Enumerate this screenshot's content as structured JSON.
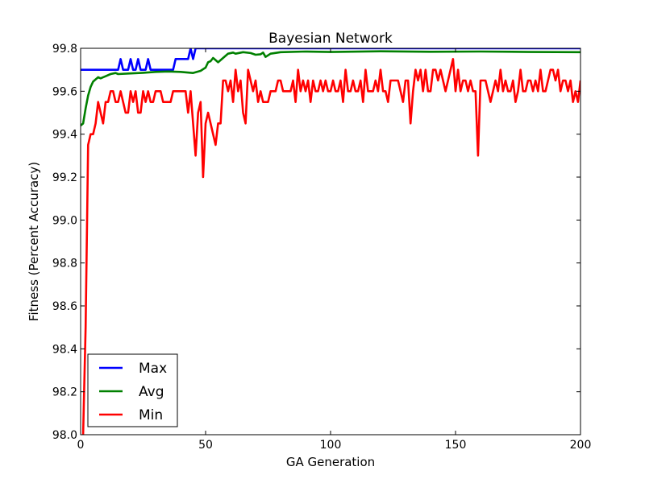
{
  "chart_data": {
    "type": "line",
    "title": "Bayesian Network",
    "xlabel": "GA Generation",
    "ylabel": "Fitness (Percent Accuracy)",
    "xlim": [
      0,
      200
    ],
    "ylim": [
      98.0,
      99.8
    ],
    "xticks": [
      0,
      50,
      100,
      150,
      200
    ],
    "yticks": [
      98.0,
      98.2,
      98.4,
      98.6,
      98.8,
      99.0,
      99.2,
      99.4,
      99.6,
      99.8
    ],
    "grid": false,
    "legend": "bottom-left",
    "series": [
      {
        "name": "Max",
        "color": "#0000ff",
        "points": [
          [
            0,
            99.7
          ],
          [
            15,
            99.7
          ],
          [
            16,
            99.75
          ],
          [
            17,
            99.7
          ],
          [
            19,
            99.7
          ],
          [
            20,
            99.75
          ],
          [
            21,
            99.7
          ],
          [
            22,
            99.7
          ],
          [
            23,
            99.75
          ],
          [
            24,
            99.7
          ],
          [
            26,
            99.7
          ],
          [
            27,
            99.75
          ],
          [
            28,
            99.7
          ],
          [
            37,
            99.7
          ],
          [
            38,
            99.75
          ],
          [
            43,
            99.75
          ],
          [
            44,
            99.8
          ],
          [
            45,
            99.75
          ],
          [
            46,
            99.8
          ],
          [
            200,
            99.8
          ]
        ]
      },
      {
        "name": "Avg",
        "color": "#008000",
        "points": [
          [
            0,
            99.44
          ],
          [
            1,
            99.45
          ],
          [
            2,
            99.52
          ],
          [
            3,
            99.58
          ],
          [
            4,
            99.62
          ],
          [
            5,
            99.645
          ],
          [
            6,
            99.655
          ],
          [
            7,
            99.665
          ],
          [
            8,
            99.66
          ],
          [
            10,
            99.67
          ],
          [
            12,
            99.68
          ],
          [
            14,
            99.685
          ],
          [
            15,
            99.68
          ],
          [
            20,
            99.683
          ],
          [
            25,
            99.686
          ],
          [
            30,
            99.69
          ],
          [
            35,
            99.692
          ],
          [
            40,
            99.69
          ],
          [
            45,
            99.685
          ],
          [
            48,
            99.695
          ],
          [
            50,
            99.71
          ],
          [
            51,
            99.735
          ],
          [
            52,
            99.74
          ],
          [
            53,
            99.755
          ],
          [
            54,
            99.745
          ],
          [
            55,
            99.735
          ],
          [
            57,
            99.755
          ],
          [
            59,
            99.775
          ],
          [
            61,
            99.78
          ],
          [
            62,
            99.775
          ],
          [
            65,
            99.782
          ],
          [
            68,
            99.778
          ],
          [
            70,
            99.77
          ],
          [
            72,
            99.772
          ],
          [
            73,
            99.78
          ],
          [
            74,
            99.76
          ],
          [
            76,
            99.775
          ],
          [
            80,
            99.782
          ],
          [
            90,
            99.785
          ],
          [
            100,
            99.783
          ],
          [
            120,
            99.786
          ],
          [
            140,
            99.784
          ],
          [
            160,
            99.785
          ],
          [
            180,
            99.783
          ],
          [
            200,
            99.782
          ]
        ]
      },
      {
        "name": "Min",
        "color": "#ff0000",
        "points": [
          [
            0,
            97.9
          ],
          [
            1,
            98.0
          ],
          [
            2,
            98.5
          ],
          [
            3,
            99.35
          ],
          [
            4,
            99.4
          ],
          [
            5,
            99.4
          ],
          [
            6,
            99.45
          ],
          [
            7,
            99.55
          ],
          [
            8,
            99.5
          ],
          [
            9,
            99.45
          ],
          [
            10,
            99.55
          ],
          [
            11,
            99.55
          ],
          [
            12,
            99.6
          ],
          [
            13,
            99.6
          ],
          [
            14,
            99.55
          ],
          [
            15,
            99.55
          ],
          [
            16,
            99.6
          ],
          [
            17,
            99.55
          ],
          [
            18,
            99.5
          ],
          [
            19,
            99.5
          ],
          [
            20,
            99.6
          ],
          [
            21,
            99.55
          ],
          [
            22,
            99.6
          ],
          [
            23,
            99.5
          ],
          [
            24,
            99.5
          ],
          [
            25,
            99.6
          ],
          [
            26,
            99.55
          ],
          [
            27,
            99.6
          ],
          [
            28,
            99.55
          ],
          [
            29,
            99.55
          ],
          [
            30,
            99.6
          ],
          [
            31,
            99.6
          ],
          [
            32,
            99.6
          ],
          [
            33,
            99.55
          ],
          [
            34,
            99.55
          ],
          [
            35,
            99.55
          ],
          [
            36,
            99.55
          ],
          [
            37,
            99.6
          ],
          [
            41,
            99.6
          ],
          [
            42,
            99.6
          ],
          [
            43,
            99.5
          ],
          [
            44,
            99.6
          ],
          [
            45,
            99.45
          ],
          [
            46,
            99.3
          ],
          [
            47,
            99.5
          ],
          [
            48,
            99.55
          ],
          [
            49,
            99.2
          ],
          [
            50,
            99.45
          ],
          [
            51,
            99.5
          ],
          [
            52,
            99.45
          ],
          [
            53,
            99.4
          ],
          [
            54,
            99.35
          ],
          [
            55,
            99.45
          ],
          [
            56,
            99.45
          ],
          [
            57,
            99.65
          ],
          [
            58,
            99.65
          ],
          [
            59,
            99.6
          ],
          [
            60,
            99.65
          ],
          [
            61,
            99.55
          ],
          [
            62,
            99.7
          ],
          [
            63,
            99.6
          ],
          [
            64,
            99.65
          ],
          [
            65,
            99.5
          ],
          [
            66,
            99.45
          ],
          [
            67,
            99.7
          ],
          [
            68,
            99.65
          ],
          [
            69,
            99.6
          ],
          [
            70,
            99.65
          ],
          [
            71,
            99.55
          ],
          [
            72,
            99.6
          ],
          [
            73,
            99.55
          ],
          [
            75,
            99.55
          ],
          [
            76,
            99.6
          ],
          [
            78,
            99.6
          ],
          [
            79,
            99.65
          ],
          [
            80,
            99.65
          ],
          [
            81,
            99.6
          ],
          [
            82,
            99.6
          ],
          [
            84,
            99.6
          ],
          [
            85,
            99.65
          ],
          [
            86,
            99.55
          ],
          [
            87,
            99.7
          ],
          [
            88,
            99.6
          ],
          [
            89,
            99.65
          ],
          [
            90,
            99.6
          ],
          [
            91,
            99.65
          ],
          [
            92,
            99.55
          ],
          [
            93,
            99.65
          ],
          [
            94,
            99.6
          ],
          [
            95,
            99.6
          ],
          [
            96,
            99.65
          ],
          [
            97,
            99.6
          ],
          [
            98,
            99.65
          ],
          [
            99,
            99.6
          ],
          [
            100,
            99.6
          ],
          [
            101,
            99.65
          ],
          [
            102,
            99.6
          ],
          [
            103,
            99.6
          ],
          [
            104,
            99.65
          ],
          [
            105,
            99.55
          ],
          [
            106,
            99.7
          ],
          [
            107,
            99.6
          ],
          [
            108,
            99.6
          ],
          [
            109,
            99.65
          ],
          [
            110,
            99.6
          ],
          [
            111,
            99.6
          ],
          [
            112,
            99.65
          ],
          [
            113,
            99.55
          ],
          [
            114,
            99.7
          ],
          [
            115,
            99.6
          ],
          [
            116,
            99.6
          ],
          [
            117,
            99.6
          ],
          [
            118,
            99.65
          ],
          [
            119,
            99.6
          ],
          [
            120,
            99.7
          ],
          [
            121,
            99.6
          ],
          [
            122,
            99.6
          ],
          [
            123,
            99.55
          ],
          [
            124,
            99.65
          ],
          [
            125,
            99.65
          ],
          [
            127,
            99.65
          ],
          [
            128,
            99.6
          ],
          [
            129,
            99.55
          ],
          [
            130,
            99.65
          ],
          [
            131,
            99.65
          ],
          [
            132,
            99.45
          ],
          [
            133,
            99.6
          ],
          [
            134,
            99.7
          ],
          [
            135,
            99.65
          ],
          [
            136,
            99.7
          ],
          [
            137,
            99.6
          ],
          [
            138,
            99.7
          ],
          [
            139,
            99.6
          ],
          [
            140,
            99.6
          ],
          [
            141,
            99.7
          ],
          [
            142,
            99.7
          ],
          [
            143,
            99.65
          ],
          [
            144,
            99.7
          ],
          [
            145,
            99.65
          ],
          [
            146,
            99.6
          ],
          [
            147,
            99.65
          ],
          [
            148,
            99.7
          ],
          [
            149,
            99.75
          ],
          [
            150,
            99.6
          ],
          [
            151,
            99.7
          ],
          [
            152,
            99.6
          ],
          [
            153,
            99.65
          ],
          [
            154,
            99.65
          ],
          [
            155,
            99.6
          ],
          [
            156,
            99.65
          ],
          [
            157,
            99.6
          ],
          [
            158,
            99.6
          ],
          [
            159,
            99.3
          ],
          [
            160,
            99.65
          ],
          [
            161,
            99.65
          ],
          [
            162,
            99.65
          ],
          [
            163,
            99.6
          ],
          [
            164,
            99.55
          ],
          [
            165,
            99.6
          ],
          [
            166,
            99.65
          ],
          [
            167,
            99.6
          ],
          [
            168,
            99.7
          ],
          [
            169,
            99.6
          ],
          [
            170,
            99.65
          ],
          [
            171,
            99.6
          ],
          [
            172,
            99.6
          ],
          [
            173,
            99.65
          ],
          [
            174,
            99.55
          ],
          [
            175,
            99.6
          ],
          [
            176,
            99.7
          ],
          [
            177,
            99.6
          ],
          [
            178,
            99.6
          ],
          [
            179,
            99.65
          ],
          [
            180,
            99.65
          ],
          [
            181,
            99.6
          ],
          [
            182,
            99.65
          ],
          [
            183,
            99.6
          ],
          [
            184,
            99.7
          ],
          [
            185,
            99.6
          ],
          [
            186,
            99.6
          ],
          [
            187,
            99.65
          ],
          [
            188,
            99.7
          ],
          [
            189,
            99.7
          ],
          [
            190,
            99.65
          ],
          [
            191,
            99.7
          ],
          [
            192,
            99.6
          ],
          [
            193,
            99.65
          ],
          [
            194,
            99.65
          ],
          [
            195,
            99.6
          ],
          [
            196,
            99.65
          ],
          [
            197,
            99.55
          ],
          [
            198,
            99.6
          ],
          [
            199,
            99.55
          ],
          [
            200,
            99.65
          ]
        ]
      }
    ]
  }
}
